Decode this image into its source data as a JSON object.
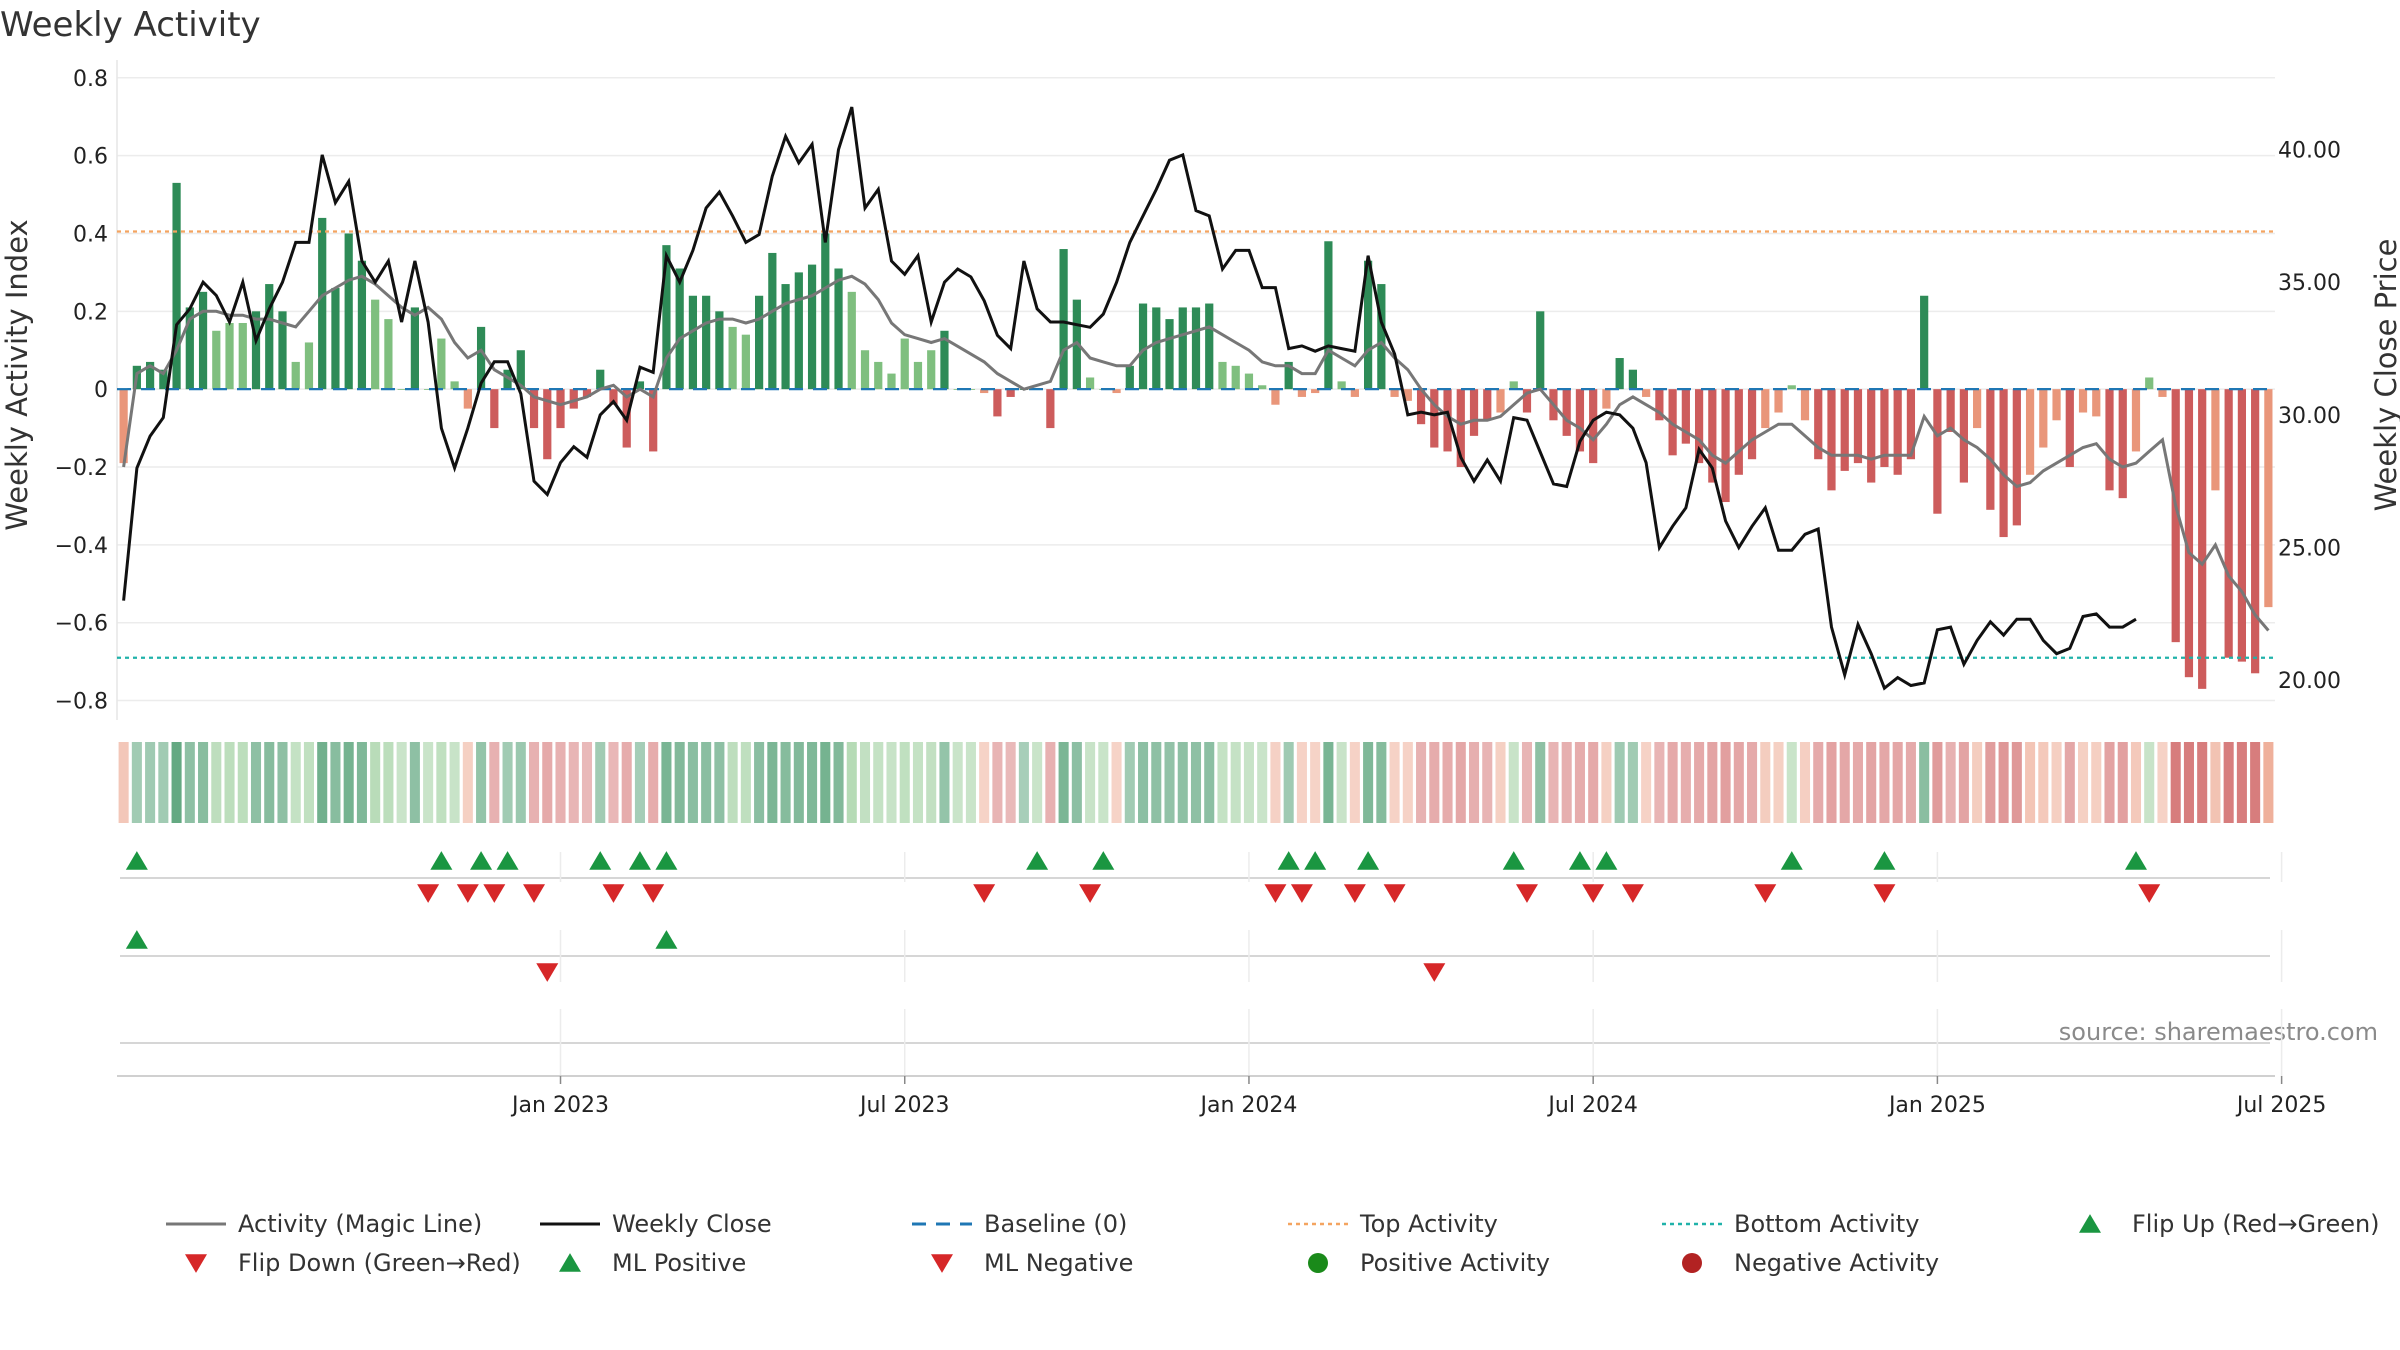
{
  "chart_data": {
    "type": "bar",
    "title": "Weekly Activity",
    "ylabel_left": "Weekly Activity Index",
    "ylabel_right": "Weekly Close Price",
    "ylim_left": [
      -0.85,
      0.82
    ],
    "ylim_right": [
      18.5,
      43.0
    ],
    "left_ticks": [
      "0.8",
      "0.6",
      "0.4",
      "0.2",
      "0",
      "−0.2",
      "−0.4",
      "−0.6",
      "−0.8"
    ],
    "left_tick_values": [
      0.8,
      0.6,
      0.4,
      0.2,
      0,
      -0.2,
      -0.4,
      -0.6,
      -0.8
    ],
    "right_ticks": [
      "40.00",
      "35.00",
      "30.00",
      "25.00",
      "20.00"
    ],
    "right_tick_values": [
      40,
      35,
      30,
      25,
      20
    ],
    "x_ticks": [
      "Jan 2023",
      "Jul 2023",
      "Jan 2024",
      "Jul 2024",
      "Jan 2025",
      "Jul 2025"
    ],
    "x_tick_weeks": [
      33.5,
      59.5,
      85.5,
      111.5,
      137.5,
      163.5
    ],
    "top_activity": 0.405,
    "bottom_activity": -0.69,
    "baseline": 0,
    "source": "source: sharemaestro.com",
    "colors": {
      "pos_strong": "#2e8b57",
      "pos_light": "#7fbf7f",
      "neg_strong": "#cd5c5c",
      "neg_light": "#e9967a",
      "close": "#111111",
      "magic": "#777777",
      "top": "#f4a460",
      "bottom": "#20b2aa",
      "baseline": "#1f77b4",
      "flip_up": "#1a9641",
      "flip_down": "#d62728"
    },
    "activity": [
      -0.19,
      0.06,
      0.07,
      0.05,
      0.53,
      0.21,
      0.25,
      0.15,
      0.17,
      0.17,
      0.2,
      0.27,
      0.2,
      0.07,
      0.12,
      0.44,
      0.26,
      0.4,
      0.33,
      0.23,
      0.18,
      0.0,
      0.21,
      0.0,
      0.13,
      0.02,
      -0.05,
      0.16,
      -0.1,
      0.05,
      0.1,
      -0.1,
      -0.18,
      -0.1,
      -0.05,
      -0.02,
      0.05,
      -0.04,
      -0.15,
      0.02,
      -0.16,
      0.37,
      0.31,
      0.24,
      0.24,
      0.2,
      0.16,
      0.14,
      0.24,
      0.35,
      0.27,
      0.3,
      0.32,
      0.4,
      0.31,
      0.25,
      0.1,
      0.07,
      0.04,
      0.13,
      0.07,
      0.1,
      0.15,
      0.0,
      0.0,
      -0.01,
      -0.07,
      -0.02,
      0.0,
      0.0,
      -0.1,
      0.36,
      0.23,
      0.03,
      0.0,
      -0.01,
      0.06,
      0.22,
      0.21,
      0.18,
      0.21,
      0.21,
      0.22,
      0.07,
      0.06,
      0.04,
      0.01,
      -0.04,
      0.07,
      -0.02,
      -0.01,
      0.38,
      0.02,
      -0.02,
      0.33,
      0.27,
      -0.02,
      -0.03,
      -0.09,
      -0.15,
      -0.16,
      -0.2,
      -0.12,
      -0.08,
      -0.06,
      0.02,
      -0.06,
      0.2,
      -0.08,
      -0.12,
      -0.16,
      -0.19,
      -0.05,
      0.08,
      0.05,
      -0.02,
      -0.08,
      -0.17,
      -0.14,
      -0.19,
      -0.24,
      -0.29,
      -0.22,
      -0.18,
      -0.1,
      -0.06,
      0.01,
      -0.08,
      -0.18,
      -0.26,
      -0.21,
      -0.19,
      -0.24,
      -0.2,
      -0.22,
      -0.18,
      0.24,
      -0.32,
      -0.11,
      -0.24,
      -0.1,
      -0.31,
      -0.38,
      -0.35,
      -0.22,
      -0.15,
      -0.08,
      -0.2,
      -0.06,
      -0.07,
      -0.26,
      -0.28,
      -0.16,
      0.03,
      -0.02,
      -0.65,
      -0.74,
      -0.77,
      -0.26,
      -0.69,
      -0.7,
      -0.73,
      -0.56
    ],
    "magic_line": [
      -0.2,
      0.04,
      0.06,
      0.04,
      0.1,
      0.18,
      0.2,
      0.2,
      0.19,
      0.19,
      0.18,
      0.18,
      0.17,
      0.16,
      0.2,
      0.24,
      0.26,
      0.28,
      0.29,
      0.27,
      0.24,
      0.21,
      0.19,
      0.21,
      0.18,
      0.12,
      0.08,
      0.1,
      0.05,
      0.03,
      0.01,
      -0.02,
      -0.03,
      -0.04,
      -0.03,
      -0.02,
      0.0,
      0.01,
      -0.02,
      0.0,
      -0.02,
      0.08,
      0.13,
      0.15,
      0.17,
      0.18,
      0.18,
      0.17,
      0.18,
      0.2,
      0.22,
      0.23,
      0.24,
      0.26,
      0.28,
      0.29,
      0.27,
      0.23,
      0.17,
      0.14,
      0.13,
      0.12,
      0.13,
      0.11,
      0.09,
      0.07,
      0.04,
      0.02,
      0.0,
      0.01,
      0.02,
      0.1,
      0.12,
      0.08,
      0.07,
      0.06,
      0.06,
      0.1,
      0.12,
      0.13,
      0.14,
      0.15,
      0.16,
      0.14,
      0.12,
      0.1,
      0.07,
      0.06,
      0.06,
      0.04,
      0.04,
      0.1,
      0.08,
      0.06,
      0.1,
      0.12,
      0.08,
      0.05,
      0.0,
      -0.04,
      -0.07,
      -0.09,
      -0.08,
      -0.08,
      -0.07,
      -0.04,
      -0.01,
      0.0,
      -0.04,
      -0.08,
      -0.1,
      -0.13,
      -0.09,
      -0.04,
      -0.02,
      -0.04,
      -0.06,
      -0.09,
      -0.11,
      -0.13,
      -0.17,
      -0.19,
      -0.16,
      -0.13,
      -0.11,
      -0.09,
      -0.09,
      -0.12,
      -0.15,
      -0.17,
      -0.17,
      -0.17,
      -0.18,
      -0.17,
      -0.17,
      -0.17,
      -0.07,
      -0.12,
      -0.1,
      -0.13,
      -0.15,
      -0.18,
      -0.22,
      -0.25,
      -0.24,
      -0.21,
      -0.19,
      -0.17,
      -0.15,
      -0.14,
      -0.18,
      -0.2,
      -0.19,
      -0.16,
      -0.13,
      -0.3,
      -0.42,
      -0.45,
      -0.4,
      -0.48,
      -0.52,
      -0.58,
      -0.62
    ],
    "weekly_close": [
      23.0,
      28.0,
      29.2,
      29.9,
      33.4,
      34.0,
      35.0,
      34.5,
      33.5,
      35.0,
      32.8,
      34.0,
      35.0,
      36.5,
      36.5,
      39.8,
      38.0,
      38.8,
      35.8,
      35.0,
      35.8,
      33.5,
      35.8,
      33.5,
      29.5,
      28.0,
      29.5,
      31.2,
      32.0,
      32.0,
      30.8,
      27.5,
      27.0,
      28.2,
      28.8,
      28.4,
      30.0,
      30.5,
      29.8,
      31.8,
      31.6,
      36.0,
      35.0,
      36.2,
      37.8,
      38.4,
      37.5,
      36.5,
      36.8,
      39.0,
      40.5,
      39.5,
      40.2,
      36.5,
      40.0,
      41.6,
      37.8,
      38.5,
      35.8,
      35.3,
      36.0,
      33.5,
      35.0,
      35.5,
      35.2,
      34.3,
      33.0,
      32.5,
      35.8,
      34.0,
      33.5,
      33.5,
      33.4,
      33.3,
      33.8,
      35.0,
      36.5,
      37.5,
      38.5,
      39.6,
      39.8,
      37.7,
      37.5,
      35.5,
      36.2,
      36.2,
      34.8,
      34.8,
      32.5,
      32.6,
      32.4,
      32.6,
      32.5,
      32.4,
      36.0,
      33.5,
      32.3,
      30.0,
      30.1,
      30.0,
      30.1,
      28.4,
      27.5,
      28.3,
      27.5,
      29.9,
      29.8,
      28.6,
      27.4,
      27.3,
      29.0,
      29.8,
      30.1,
      30.0,
      29.5,
      28.2,
      25.0,
      25.8,
      26.5,
      28.7,
      28.0,
      26.0,
      25.0,
      25.8,
      26.5,
      24.9,
      24.9,
      25.5,
      25.7,
      22.0,
      20.2,
      22.1,
      21.0,
      19.7,
      20.1,
      19.8,
      19.9,
      21.9,
      22.0,
      20.6,
      21.5,
      22.2,
      21.7,
      22.3,
      22.3,
      21.5,
      21.0,
      21.2,
      22.4,
      22.5,
      22.0,
      22.0,
      22.3
    ],
    "bottom_strip_label": "",
    "flip_up_weeks": [
      1.5,
      24.5,
      27.5,
      29.5,
      36.5,
      39.5,
      41.5,
      69.5,
      74.5,
      88.5,
      90.5,
      94.5,
      105.5,
      110.5,
      112.5,
      126.5,
      133.5,
      152.5
    ],
    "flip_down_weeks": [
      23.5,
      26.5,
      28.5,
      31.5,
      37.5,
      40.5,
      65.5,
      73.5,
      87.5,
      89.5,
      93.5,
      96.5,
      106.5,
      111.5,
      114.5,
      124.5,
      133.5,
      153.5
    ],
    "ml_positive_weeks": [
      1.5,
      41.5
    ],
    "ml_negative_weeks": [
      32.5,
      99.5
    ],
    "legend": [
      {
        "label": "Activity (Magic Line)",
        "kind": "line",
        "color": "#777777"
      },
      {
        "label": "Weekly Close",
        "kind": "line",
        "color": "#111111"
      },
      {
        "label": "Baseline (0)",
        "kind": "dash",
        "color": "#1f77b4"
      },
      {
        "label": "Top Activity",
        "kind": "dot",
        "color": "#f4a460"
      },
      {
        "label": "Bottom Activity",
        "kind": "dot",
        "color": "#20b2aa"
      },
      {
        "label": "Flip Up (Red→Green)",
        "kind": "up",
        "color": "#1a9641"
      },
      {
        "label": "Flip Down (Green→Red)",
        "kind": "down",
        "color": "#d62728"
      },
      {
        "label": "ML Positive",
        "kind": "up",
        "color": "#1a9641"
      },
      {
        "label": "ML Negative",
        "kind": "down",
        "color": "#d62728"
      },
      {
        "label": "Positive Activity",
        "kind": "circle",
        "color": "#1a8a1a"
      },
      {
        "label": "Negative Activity",
        "kind": "circle",
        "color": "#b22222"
      }
    ]
  }
}
